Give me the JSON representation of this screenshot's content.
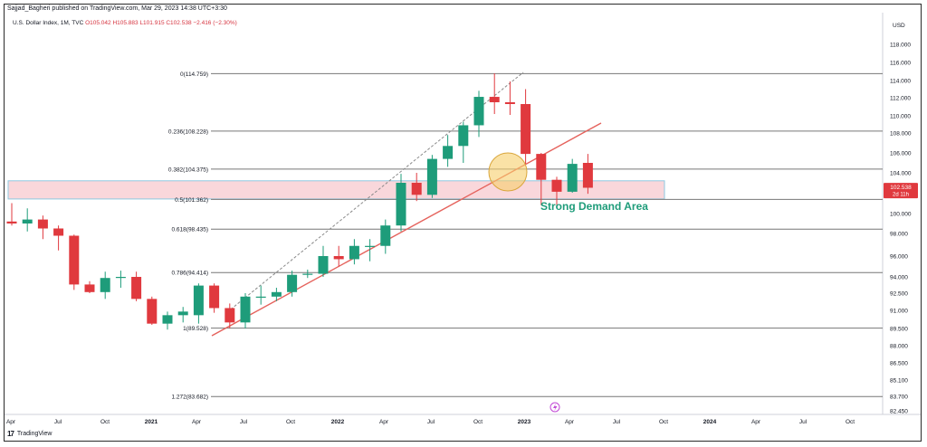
{
  "header": {
    "publish_line": "Sajjad_Bagheri published on TradingView.com, Mar 29, 2023 14:38 UTC+3:30",
    "symbol_line": "U.S. Dollar Index, 1M, TVC",
    "ohlc": "O105.042 H105.883 L101.915 C102.538 −2.416 (−2.30%)"
  },
  "brand": {
    "logo": "17",
    "name": "TradingView"
  },
  "colors": {
    "up": "#1e9c7a",
    "down": "#e0393e",
    "trendline": "#e5625c",
    "zone_fill": "#f7c9cf",
    "zone_border": "#8ec9e0",
    "fib_line": "#777777",
    "highlight": "#f6cf6a",
    "annotation": "#1e9c7a",
    "price_tag": "#e0393e"
  },
  "icons": {
    "lightning": "lightning-icon"
  },
  "chart_data": {
    "type": "candlestick",
    "title": "U.S. Dollar Index",
    "timeframe": "1M",
    "y_axis_label": "USD",
    "y_ticks": [
      "118.000",
      "116.000",
      "114.000",
      "112.000",
      "110.000",
      "108.000",
      "106.000",
      "104.000",
      "102.000",
      "100.000",
      "98.000",
      "96.000",
      "94.000",
      "92.500",
      "91.000",
      "89.500",
      "88.000",
      "86.500",
      "85.100",
      "83.700",
      "82.450"
    ],
    "x_ticks": [
      "Apr",
      "Jul",
      "Oct",
      "2021",
      "Apr",
      "Jul",
      "Oct",
      "2022",
      "Apr",
      "Jul",
      "Oct",
      "2023",
      "Apr",
      "Jul",
      "Oct",
      "2024",
      "Apr",
      "Jul",
      "Oct"
    ],
    "current_price": "102.538",
    "countdown": "2d 11h",
    "candles": [
      {
        "o": 99.2,
        "h": 101.0,
        "l": 98.8,
        "c": 99.0
      },
      {
        "o": 99.0,
        "h": 100.5,
        "l": 98.2,
        "c": 99.4
      },
      {
        "o": 99.4,
        "h": 99.8,
        "l": 97.5,
        "c": 98.5
      },
      {
        "o": 98.5,
        "h": 98.8,
        "l": 96.5,
        "c": 97.8
      },
      {
        "o": 97.8,
        "h": 97.9,
        "l": 92.8,
        "c": 93.3
      },
      {
        "o": 93.3,
        "h": 93.6,
        "l": 92.5,
        "c": 92.6
      },
      {
        "o": 92.6,
        "h": 94.5,
        "l": 92.0,
        "c": 93.9
      },
      {
        "o": 93.9,
        "h": 94.6,
        "l": 93.0,
        "c": 94.0
      },
      {
        "o": 94.0,
        "h": 94.5,
        "l": 91.8,
        "c": 92.0
      },
      {
        "o": 92.0,
        "h": 92.2,
        "l": 89.8,
        "c": 89.9
      },
      {
        "o": 89.9,
        "h": 90.9,
        "l": 89.4,
        "c": 90.6
      },
      {
        "o": 90.6,
        "h": 91.3,
        "l": 90.0,
        "c": 90.9
      },
      {
        "o": 90.6,
        "h": 93.4,
        "l": 89.9,
        "c": 93.2
      },
      {
        "o": 93.2,
        "h": 93.4,
        "l": 90.8,
        "c": 91.2
      },
      {
        "o": 91.2,
        "h": 91.6,
        "l": 89.5,
        "c": 90.0
      },
      {
        "o": 90.0,
        "h": 92.5,
        "l": 89.5,
        "c": 92.2
      },
      {
        "o": 92.2,
        "h": 93.2,
        "l": 91.5,
        "c": 92.2
      },
      {
        "o": 92.2,
        "h": 93.0,
        "l": 91.8,
        "c": 92.6
      },
      {
        "o": 92.6,
        "h": 94.6,
        "l": 92.2,
        "c": 94.2
      },
      {
        "o": 94.2,
        "h": 94.7,
        "l": 93.9,
        "c": 94.3
      },
      {
        "o": 94.3,
        "h": 96.9,
        "l": 94.0,
        "c": 96.0
      },
      {
        "o": 96.0,
        "h": 96.9,
        "l": 95.0,
        "c": 95.7
      },
      {
        "o": 95.7,
        "h": 97.5,
        "l": 95.2,
        "c": 96.9
      },
      {
        "o": 96.9,
        "h": 97.5,
        "l": 95.5,
        "c": 96.9
      },
      {
        "o": 96.9,
        "h": 99.4,
        "l": 96.2,
        "c": 98.8
      },
      {
        "o": 98.8,
        "h": 103.9,
        "l": 98.2,
        "c": 103.0
      },
      {
        "o": 103.0,
        "h": 104.0,
        "l": 101.2,
        "c": 101.8
      },
      {
        "o": 101.8,
        "h": 105.8,
        "l": 101.5,
        "c": 105.4
      },
      {
        "o": 105.4,
        "h": 107.8,
        "l": 104.6,
        "c": 106.7
      },
      {
        "o": 106.7,
        "h": 109.3,
        "l": 105.0,
        "c": 108.9
      },
      {
        "o": 108.9,
        "h": 112.8,
        "l": 107.6,
        "c": 112.1
      },
      {
        "o": 112.1,
        "h": 114.8,
        "l": 110.2,
        "c": 111.5
      },
      {
        "o": 111.5,
        "h": 113.9,
        "l": 110.1,
        "c": 111.3
      },
      {
        "o": 111.3,
        "h": 113.0,
        "l": 104.9,
        "c": 105.9
      },
      {
        "o": 105.9,
        "h": 106.0,
        "l": 100.8,
        "c": 103.3
      },
      {
        "o": 103.3,
        "h": 103.6,
        "l": 100.8,
        "c": 102.1
      },
      {
        "o": 102.1,
        "h": 105.4,
        "l": 102.0,
        "c": 104.9
      },
      {
        "o": 105.0,
        "h": 105.9,
        "l": 101.9,
        "c": 102.5
      }
    ],
    "fib_levels": [
      {
        "label": "0(114.759)",
        "value": 114.759
      },
      {
        "label": "0.236(108.228)",
        "value": 108.228
      },
      {
        "label": "0.382(104.375)",
        "value": 104.375
      },
      {
        "label": "0.5(101.362)",
        "value": 101.362
      },
      {
        "label": "0.618(98.435)",
        "value": 98.435
      },
      {
        "label": "0.786(94.414)",
        "value": 94.414
      },
      {
        "label": "1(89.528)",
        "value": 89.528
      },
      {
        "label": "1.272(83.682)",
        "value": 83.682
      }
    ],
    "demand_zone": {
      "top": 103.2,
      "bottom": 101.4
    },
    "annotation": "Strong Demand Area"
  }
}
